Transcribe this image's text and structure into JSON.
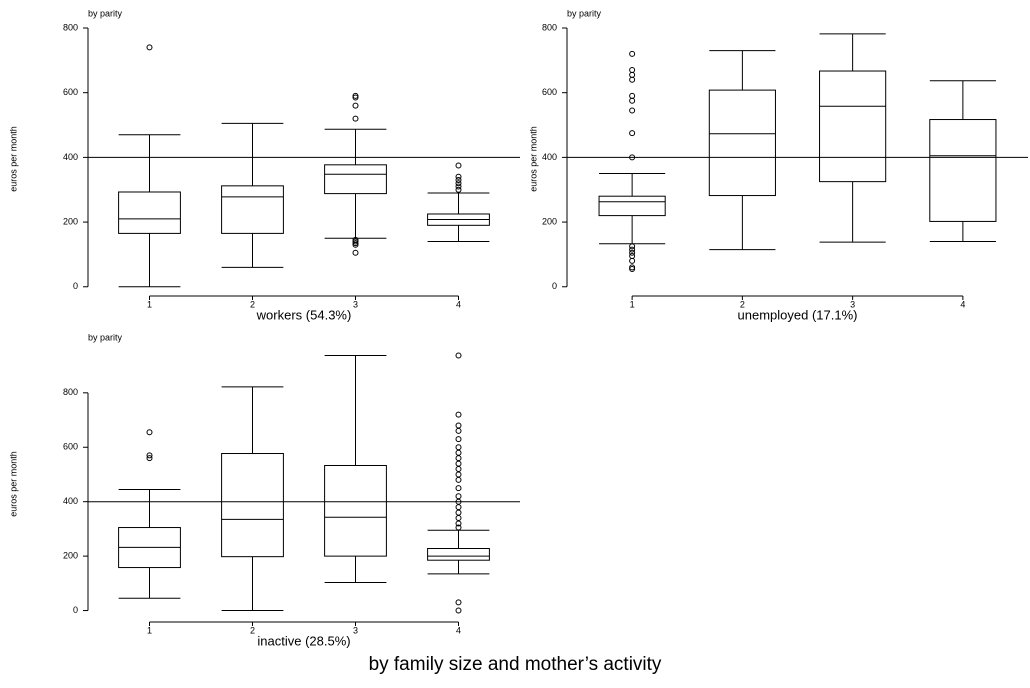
{
  "title": "by family size and mother’s activity",
  "chart_data": [
    {
      "type": "box",
      "subtitle": "by parity",
      "ylabel": "euros per month",
      "xlabel": "workers (54.3%)",
      "categories": [
        "1",
        "2",
        "3",
        "4"
      ],
      "ylim": [
        -10,
        800
      ],
      "yticks": [
        0,
        200,
        400,
        600,
        800
      ],
      "reference_line": 400,
      "boxes": [
        {
          "low": 0,
          "q1": 165,
          "median": 210,
          "q3": 293,
          "high": 470,
          "outliers": [
            740
          ]
        },
        {
          "low": 60,
          "q1": 165,
          "median": 278,
          "q3": 312,
          "high": 505,
          "outliers": []
        },
        {
          "low": 150,
          "q1": 288,
          "median": 348,
          "q3": 377,
          "high": 487,
          "outliers": [
            520,
            560,
            585,
            590,
            145,
            140,
            135,
            130,
            105
          ]
        },
        {
          "low": 140,
          "q1": 190,
          "median": 208,
          "q3": 225,
          "high": 290,
          "outliers": [
            300,
            310,
            320,
            330,
            340,
            375
          ]
        }
      ]
    },
    {
      "type": "box",
      "subtitle": "by parity",
      "ylabel": "euros per month",
      "xlabel": "unemployed (17.1%)",
      "categories": [
        "1",
        "2",
        "3",
        "4"
      ],
      "ylim": [
        -10,
        800
      ],
      "yticks": [
        0,
        200,
        400,
        600,
        800
      ],
      "reference_line": 400,
      "boxes": [
        {
          "low": 133,
          "q1": 220,
          "median": 263,
          "q3": 280,
          "high": 350,
          "outliers": [
            720,
            670,
            655,
            640,
            590,
            575,
            545,
            475,
            400,
            125,
            115,
            105,
            95,
            80,
            60,
            55
          ]
        },
        {
          "low": 115,
          "q1": 282,
          "median": 473,
          "q3": 608,
          "high": 730,
          "outliers": []
        },
        {
          "low": 138,
          "q1": 325,
          "median": 558,
          "q3": 667,
          "high": 782,
          "outliers": []
        },
        {
          "low": 140,
          "q1": 202,
          "median": 405,
          "q3": 517,
          "high": 637,
          "outliers": []
        }
      ]
    },
    {
      "type": "box",
      "subtitle": "by parity",
      "ylabel": "euros per month",
      "xlabel": "inactive (28.5%)",
      "categories": [
        "1",
        "2",
        "3",
        "4"
      ],
      "ylim": [
        -20,
        950
      ],
      "yticks": [
        0,
        200,
        400,
        600,
        800
      ],
      "reference_line": 400,
      "boxes": [
        {
          "low": 45,
          "q1": 158,
          "median": 232,
          "q3": 305,
          "high": 445,
          "outliers": [
            560,
            570,
            655
          ]
        },
        {
          "low": 0,
          "q1": 198,
          "median": 335,
          "q3": 577,
          "high": 822,
          "outliers": []
        },
        {
          "low": 103,
          "q1": 200,
          "median": 343,
          "q3": 533,
          "high": 937,
          "outliers": []
        },
        {
          "low": 135,
          "q1": 185,
          "median": 200,
          "q3": 228,
          "high": 295,
          "outliers": [
            305,
            320,
            340,
            360,
            380,
            400,
            420,
            450,
            480,
            500,
            520,
            540,
            560,
            580,
            600,
            630,
            660,
            680,
            720,
            937,
            30,
            0
          ]
        }
      ]
    }
  ]
}
